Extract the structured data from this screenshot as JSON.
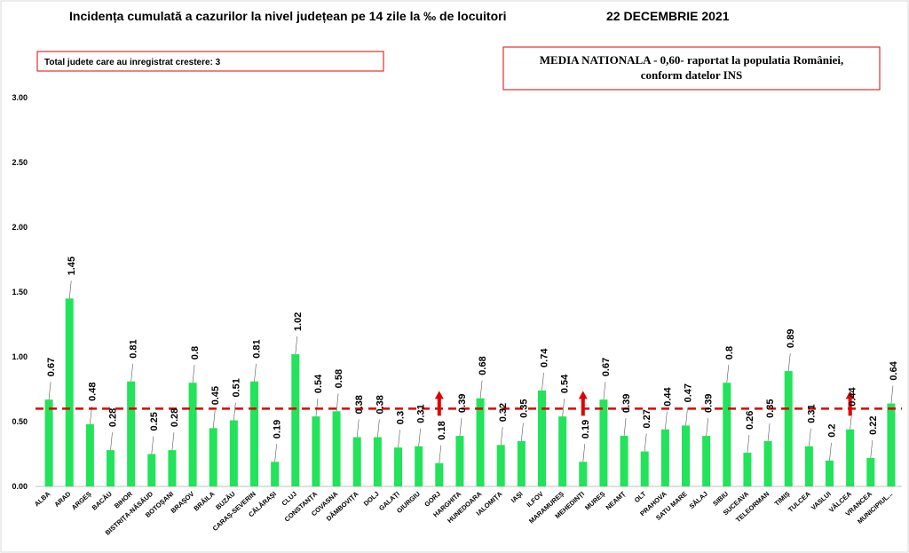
{
  "chart_data": {
    "type": "bar",
    "title": "Incidența cumulată a cazurilor la nivel județean pe 14 zile la ‰ de locuitori",
    "date": "22 DECEMBRIE 2021",
    "ylim": [
      0,
      3
    ],
    "yticks": [
      "0.00",
      "0.50",
      "1.00",
      "1.50",
      "2.00",
      "2.50",
      "3.00"
    ],
    "ytick_values": [
      0,
      0.5,
      1,
      1.5,
      2,
      2.5,
      3
    ],
    "bar_color": "#22e35a",
    "reference_line": {
      "value": 0.6,
      "color": "#e00000"
    },
    "arrow_color": "#e00000",
    "categories": [
      "ALBA",
      "ARAD",
      "ARGEȘ",
      "BACĂU",
      "BIHOR",
      "BISTRIȚA-NĂSĂUD",
      "BOTOȘANI",
      "BRAȘOV",
      "BRĂILA",
      "BUZĂU",
      "CARAȘ-SEVERIN",
      "CĂLĂRAȘI",
      "CLUJ",
      "CONSTANȚA",
      "COVASNA",
      "DÂMBOVIȚA",
      "DOLJ",
      "GALAȚI",
      "GIURGIU",
      "GORJ",
      "HARGHITA",
      "HUNEDOARA",
      "IALOMIȚA",
      "IAȘI",
      "ILFOV",
      "MARAMUREȘ",
      "MEHEDINȚI",
      "MUREȘ",
      "NEAMȚ",
      "OLT",
      "PRAHOVA",
      "SATU MARE",
      "SĂLAJ",
      "SIBIU",
      "SUCEAVA",
      "TELEORMAN",
      "TIMIȘ",
      "TULCEA",
      "VASLUI",
      "VÂLCEA",
      "VRANCEA",
      "MUNICIPIUL..."
    ],
    "values": [
      0.67,
      1.45,
      0.48,
      0.28,
      0.81,
      0.25,
      0.28,
      0.8,
      0.45,
      0.51,
      0.81,
      0.19,
      1.02,
      0.54,
      0.58,
      0.38,
      0.38,
      0.3,
      0.31,
      0.18,
      0.39,
      0.68,
      0.32,
      0.35,
      0.74,
      0.54,
      0.19,
      0.67,
      0.39,
      0.27,
      0.44,
      0.47,
      0.39,
      0.8,
      0.26,
      0.35,
      0.89,
      0.31,
      0.2,
      0.44,
      0.22,
      0.64
    ],
    "value_labels": [
      "0.67",
      "1.45",
      "0.48",
      "0.28",
      "0.81",
      "0.25",
      "0.28",
      "0.8",
      "0.45",
      "0.51",
      "0.81",
      "0.19",
      "1.02",
      "0.54",
      "0.58",
      "0.38",
      "0.38",
      "0.3",
      "0.31",
      "0.18",
      "0.39",
      "0.68",
      "0.32",
      "0.35",
      "0.74",
      "0.54",
      "0.19",
      "0.67",
      "0.39",
      "0.27",
      "0.44",
      "0.47",
      "0.39",
      "0.8",
      "0.26",
      "0.35",
      "0.89",
      "0.31",
      "0.2",
      "0.44",
      "0.22",
      "0.64"
    ],
    "increase_arrows": [
      "GORJ",
      "MEHEDINȚI",
      "VÂLCEA"
    ]
  },
  "info_left": "Total judete care au inregistrat crestere: 3",
  "info_right": {
    "line1": "MEDIA NATIONALA - 0,60-  raportat la populatia României,",
    "line2": "conform datelor INS"
  }
}
